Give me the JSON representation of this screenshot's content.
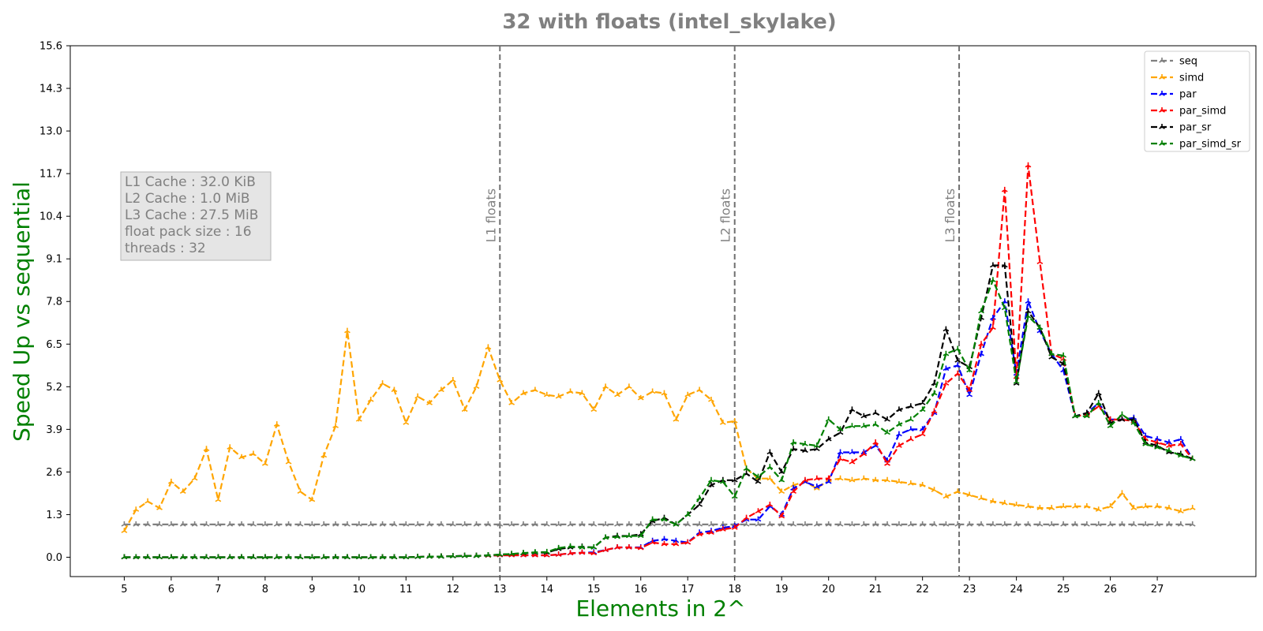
{
  "chart_data": {
    "type": "line",
    "title": "32 with floats  (intel_skylake)",
    "xlabel": "Elements in 2^",
    "ylabel": "Speed Up vs sequential",
    "xlim": [
      3.85,
      29.1
    ],
    "ylim": [
      -0.59,
      15.6
    ],
    "x_ticks": [
      5,
      6,
      7,
      8,
      9,
      10,
      11,
      12,
      13,
      14,
      15,
      16,
      17,
      18,
      19,
      20,
      21,
      22,
      23,
      24,
      25,
      26,
      27
    ],
    "y_ticks": [
      "0.0",
      "1.3",
      "2.6",
      "3.9",
      "5.2",
      "6.5",
      "7.8",
      "9.1",
      "10.4",
      "11.7",
      "13.0",
      "14.3",
      "15.6"
    ],
    "grid": false,
    "legend_position": "top-right",
    "vlines": [
      {
        "x": 13.0,
        "label": "L1 floats"
      },
      {
        "x": 18.0,
        "label": "L2 floats"
      },
      {
        "x": 22.78,
        "label": "L3 floats"
      }
    ],
    "info_box": [
      "L1 Cache : 32.0 KiB",
      "L2 Cache : 1.0 MiB",
      "L3 Cache : 27.5 MiB",
      "float pack size : 16",
      "threads : 32"
    ],
    "x": [
      5.0,
      5.25,
      5.5,
      5.75,
      6.0,
      6.25,
      6.5,
      6.75,
      7.0,
      7.25,
      7.5,
      7.75,
      8.0,
      8.25,
      8.5,
      8.75,
      9.0,
      9.25,
      9.5,
      9.75,
      10.0,
      10.25,
      10.5,
      10.75,
      11.0,
      11.25,
      11.5,
      11.75,
      12.0,
      12.25,
      12.5,
      12.75,
      13.0,
      13.25,
      13.5,
      13.75,
      14.0,
      14.25,
      14.5,
      14.75,
      15.0,
      15.25,
      15.5,
      15.75,
      16.0,
      16.25,
      16.5,
      16.75,
      17.0,
      17.25,
      17.5,
      17.75,
      18.0,
      18.25,
      18.5,
      18.75,
      19.0,
      19.25,
      19.5,
      19.75,
      20.0,
      20.25,
      20.5,
      20.75,
      21.0,
      21.25,
      21.5,
      21.75,
      22.0,
      22.25,
      22.5,
      22.75,
      23.0,
      23.25,
      23.5,
      23.75,
      24.0,
      24.25,
      24.5,
      24.75,
      25.0,
      25.25,
      25.5,
      25.75,
      26.0,
      26.25,
      26.5,
      26.75,
      27.0,
      27.25,
      27.5,
      27.75
    ],
    "series": [
      {
        "name": "seq",
        "color": "#808080",
        "values": [
          1.0,
          1.0,
          1.0,
          1.0,
          1.0,
          1.0,
          1.0,
          1.0,
          1.0,
          1.0,
          1.0,
          1.0,
          1.0,
          1.0,
          1.0,
          1.0,
          1.0,
          1.0,
          1.0,
          1.0,
          1.0,
          1.0,
          1.0,
          1.0,
          1.0,
          1.0,
          1.0,
          1.0,
          1.0,
          1.0,
          1.0,
          1.0,
          1.0,
          1.0,
          1.0,
          1.0,
          1.0,
          1.0,
          1.0,
          1.0,
          1.0,
          1.0,
          1.0,
          1.0,
          1.0,
          1.0,
          1.0,
          1.0,
          1.0,
          1.0,
          1.0,
          1.0,
          1.0,
          1.0,
          1.0,
          1.0,
          1.0,
          1.0,
          1.0,
          1.0,
          1.0,
          1.0,
          1.0,
          1.0,
          1.0,
          1.0,
          1.0,
          1.0,
          1.0,
          1.0,
          1.0,
          1.0,
          1.0,
          1.0,
          1.0,
          1.0,
          1.0,
          1.0,
          1.0,
          1.0,
          1.0,
          1.0,
          1.0,
          1.0,
          1.0,
          1.0,
          1.0,
          1.0,
          1.0,
          1.0,
          1.0,
          1.0
        ]
      },
      {
        "name": "simd",
        "color": "#FFA500",
        "values": [
          0.8,
          1.45,
          1.7,
          1.5,
          2.3,
          2.0,
          2.4,
          3.3,
          1.75,
          3.35,
          3.05,
          3.15,
          2.85,
          4.05,
          2.9,
          2.0,
          1.75,
          3.1,
          4.0,
          6.9,
          4.2,
          4.8,
          5.3,
          5.1,
          4.1,
          4.9,
          4.7,
          5.1,
          5.4,
          4.5,
          5.2,
          6.4,
          5.4,
          4.7,
          5.0,
          5.1,
          4.95,
          4.9,
          5.05,
          5.0,
          4.5,
          5.2,
          4.95,
          5.2,
          4.85,
          5.05,
          5.0,
          4.2,
          4.95,
          5.1,
          4.8,
          4.1,
          4.15,
          2.7,
          2.4,
          2.4,
          2.0,
          2.2,
          2.3,
          2.1,
          2.35,
          2.4,
          2.35,
          2.4,
          2.35,
          2.35,
          2.3,
          2.25,
          2.2,
          2.05,
          1.85,
          2.0,
          1.9,
          1.8,
          1.7,
          1.65,
          1.6,
          1.55,
          1.5,
          1.5,
          1.55,
          1.55,
          1.55,
          1.45,
          1.55,
          1.95,
          1.5,
          1.55,
          1.55,
          1.5,
          1.4,
          1.5
        ]
      },
      {
        "name": "par",
        "color": "#0000FF",
        "values": [
          0.0,
          0.0,
          0.0,
          0.0,
          0.0,
          0.0,
          0.0,
          0.0,
          0.0,
          0.0,
          0.0,
          0.0,
          0.0,
          0.0,
          0.0,
          0.0,
          0.0,
          0.0,
          0.0,
          0.0,
          0.0,
          0.0,
          0.0,
          0.0,
          0.0,
          0.01,
          0.02,
          0.02,
          0.03,
          0.04,
          0.04,
          0.05,
          0.06,
          0.06,
          0.06,
          0.06,
          0.06,
          0.08,
          0.12,
          0.14,
          0.15,
          0.22,
          0.3,
          0.3,
          0.3,
          0.5,
          0.55,
          0.5,
          0.45,
          0.75,
          0.8,
          0.9,
          0.95,
          1.15,
          1.15,
          1.55,
          1.3,
          2.1,
          2.3,
          2.15,
          2.3,
          3.2,
          3.2,
          3.2,
          3.4,
          2.95,
          3.75,
          3.9,
          3.9,
          4.4,
          5.75,
          5.85,
          4.95,
          6.2,
          7.3,
          7.8,
          5.6,
          7.8,
          6.9,
          6.2,
          5.7,
          4.3,
          4.4,
          4.7,
          4.2,
          4.2,
          4.25,
          3.7,
          3.6,
          3.5,
          3.6,
          3.0
        ]
      },
      {
        "name": "par_simd",
        "color": "#FF0000",
        "values": [
          0.0,
          0.0,
          0.0,
          0.0,
          0.0,
          0.0,
          0.0,
          0.0,
          0.0,
          0.0,
          0.0,
          0.0,
          0.0,
          0.0,
          0.0,
          0.0,
          0.0,
          0.0,
          0.0,
          0.0,
          0.0,
          0.0,
          0.0,
          0.0,
          0.0,
          0.01,
          0.02,
          0.02,
          0.03,
          0.04,
          0.04,
          0.05,
          0.06,
          0.06,
          0.06,
          0.06,
          0.06,
          0.08,
          0.12,
          0.14,
          0.12,
          0.22,
          0.3,
          0.3,
          0.28,
          0.45,
          0.4,
          0.4,
          0.45,
          0.7,
          0.75,
          0.85,
          0.9,
          1.2,
          1.4,
          1.6,
          1.25,
          2.0,
          2.35,
          2.4,
          2.4,
          3.0,
          2.9,
          3.15,
          3.5,
          2.85,
          3.4,
          3.6,
          3.75,
          4.45,
          5.3,
          5.6,
          5.1,
          6.5,
          7.0,
          11.2,
          5.5,
          11.95,
          9.0,
          6.2,
          6.05,
          4.3,
          4.35,
          4.6,
          4.2,
          4.2,
          4.15,
          3.6,
          3.5,
          3.4,
          3.45,
          3.0
        ]
      },
      {
        "name": "par_sr",
        "color": "#000000",
        "values": [
          0.0,
          0.0,
          0.0,
          0.0,
          0.0,
          0.0,
          0.0,
          0.0,
          0.0,
          0.0,
          0.0,
          0.0,
          0.0,
          0.0,
          0.0,
          0.0,
          0.0,
          0.0,
          0.0,
          0.0,
          0.0,
          0.0,
          0.0,
          0.0,
          0.0,
          0.01,
          0.02,
          0.02,
          0.03,
          0.04,
          0.04,
          0.06,
          0.08,
          0.1,
          0.12,
          0.14,
          0.14,
          0.25,
          0.3,
          0.32,
          0.3,
          0.6,
          0.65,
          0.65,
          0.7,
          1.1,
          1.2,
          1.0,
          1.3,
          1.6,
          2.2,
          2.35,
          2.35,
          2.55,
          2.3,
          3.2,
          2.6,
          3.3,
          3.25,
          3.3,
          3.6,
          3.8,
          4.5,
          4.3,
          4.4,
          4.2,
          4.5,
          4.6,
          4.7,
          5.3,
          6.95,
          6.0,
          5.8,
          7.3,
          8.9,
          8.9,
          5.3,
          7.5,
          7.0,
          6.1,
          5.9,
          4.3,
          4.4,
          5.0,
          4.1,
          4.2,
          4.2,
          3.5,
          3.4,
          3.2,
          3.15,
          3.0
        ]
      },
      {
        "name": "par_simd_sr",
        "color": "#008000",
        "values": [
          0.0,
          0.0,
          0.0,
          0.0,
          0.0,
          0.0,
          0.0,
          0.0,
          0.0,
          0.0,
          0.0,
          0.0,
          0.0,
          0.0,
          0.0,
          0.0,
          0.0,
          0.0,
          0.0,
          0.0,
          0.0,
          0.0,
          0.0,
          0.0,
          0.0,
          0.01,
          0.02,
          0.02,
          0.03,
          0.04,
          0.04,
          0.06,
          0.08,
          0.1,
          0.13,
          0.15,
          0.16,
          0.28,
          0.33,
          0.3,
          0.3,
          0.6,
          0.62,
          0.65,
          0.65,
          1.15,
          1.15,
          1.0,
          1.3,
          1.8,
          2.35,
          2.3,
          1.85,
          2.7,
          2.45,
          2.75,
          2.35,
          3.5,
          3.45,
          3.4,
          4.2,
          3.9,
          4.0,
          4.0,
          4.05,
          3.8,
          4.05,
          4.2,
          4.5,
          5.0,
          6.2,
          6.35,
          5.7,
          7.5,
          8.45,
          7.6,
          5.35,
          7.35,
          7.0,
          6.2,
          6.15,
          4.3,
          4.3,
          4.7,
          4.0,
          4.35,
          4.1,
          3.45,
          3.35,
          3.25,
          3.1,
          3.0
        ]
      }
    ]
  }
}
